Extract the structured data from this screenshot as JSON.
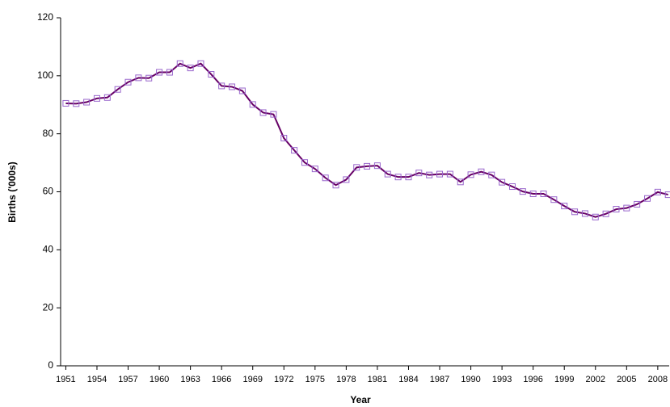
{
  "chart_data": {
    "type": "line",
    "xlabel": "Year",
    "ylabel": "Births ('000s)",
    "x": [
      1951,
      1952,
      1953,
      1954,
      1955,
      1956,
      1957,
      1958,
      1959,
      1960,
      1961,
      1962,
      1963,
      1964,
      1965,
      1966,
      1967,
      1968,
      1969,
      1970,
      1971,
      1972,
      1973,
      1974,
      1975,
      1976,
      1977,
      1978,
      1979,
      1980,
      1981,
      1982,
      1983,
      1984,
      1985,
      1986,
      1987,
      1988,
      1989,
      1990,
      1991,
      1992,
      1993,
      1994,
      1995,
      1996,
      1997,
      1998,
      1999,
      2000,
      2001,
      2002,
      2003,
      2004,
      2005,
      2006,
      2007,
      2008,
      2009
    ],
    "series": [
      {
        "color": "#660066",
        "marker_color": "#9966cc",
        "values": [
          90.5,
          90.4,
          90.9,
          92.2,
          92.5,
          95.3,
          97.8,
          99.3,
          99.2,
          101.2,
          101.2,
          104.2,
          102.7,
          104.2,
          100.5,
          96.5,
          96.2,
          94.8,
          90.1,
          87.3,
          86.7,
          78.5,
          74.3,
          70.1,
          67.9,
          64.8,
          62.3,
          64.2,
          68.4,
          68.8,
          69.0,
          66.1,
          65.1,
          65.1,
          66.5,
          65.8,
          66.1,
          66.1,
          63.4,
          65.9,
          66.9,
          65.8,
          63.3,
          61.8,
          60.1,
          59.3,
          59.3,
          57.3,
          55.1,
          53.1,
          52.5,
          51.3,
          52.4,
          54.0,
          54.4,
          55.7,
          57.7,
          59.9,
          59.0
        ]
      }
    ],
    "xlim": [
      1950.5,
      2009.1
    ],
    "xticks": [
      1951,
      1954,
      1957,
      1960,
      1963,
      1966,
      1969,
      1972,
      1975,
      1978,
      1981,
      1984,
      1987,
      1990,
      1993,
      1996,
      1999,
      2002,
      2005,
      2008
    ],
    "ylim": [
      0,
      120
    ],
    "yticks": [
      0,
      20,
      40,
      60,
      80,
      100,
      120
    ],
    "grid": false
  }
}
